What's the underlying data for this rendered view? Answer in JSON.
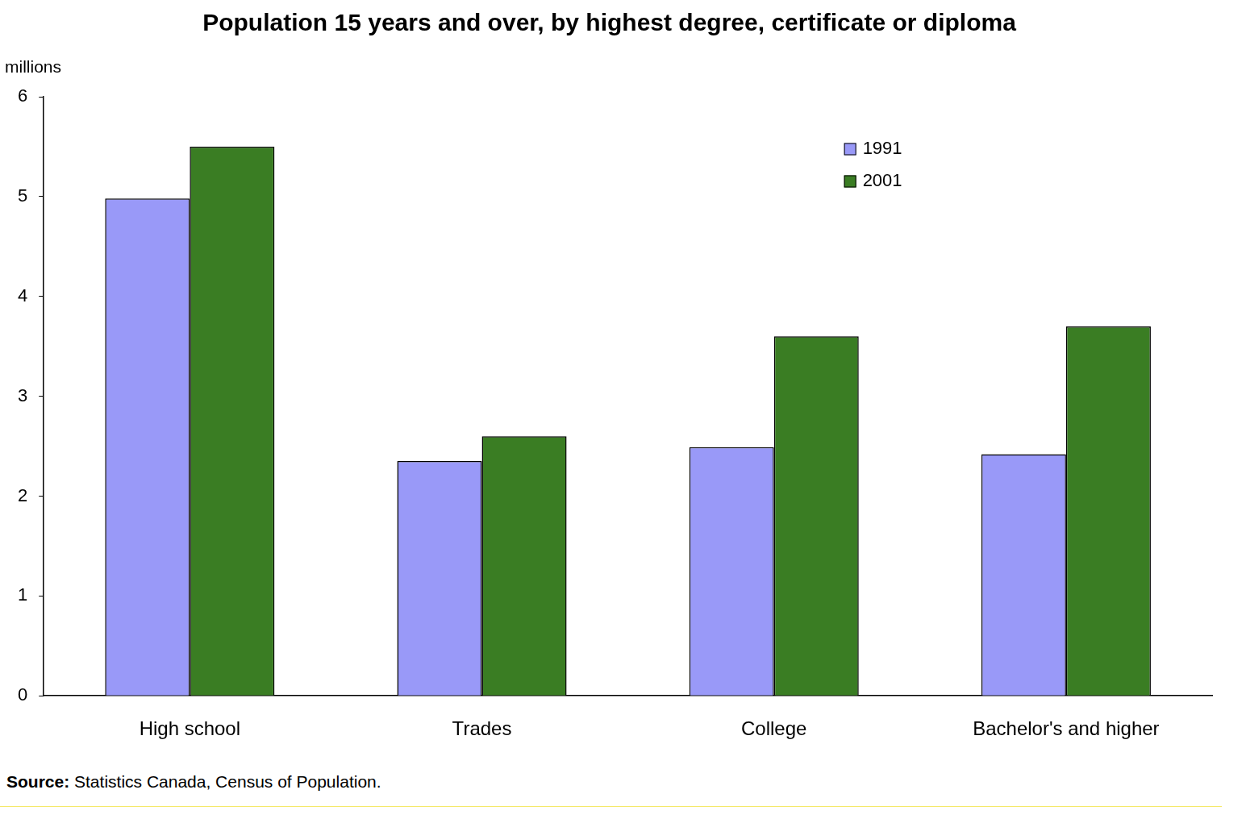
{
  "chart_data": {
    "type": "bar",
    "title": "Population 15 years and over, by highest degree, certificate or diploma",
    "ylabel": "millions",
    "categories": [
      "High school",
      "Trades",
      "College",
      "Bachelor's and higher"
    ],
    "series": [
      {
        "name": "1991",
        "color": "#9999f8",
        "values": [
          4.98,
          2.35,
          2.49,
          2.42
        ]
      },
      {
        "name": "2001",
        "color": "#3a7d23",
        "values": [
          5.5,
          2.6,
          3.6,
          3.7
        ]
      }
    ],
    "ylim": [
      0,
      6
    ],
    "yticks": [
      0,
      1,
      2,
      3,
      4,
      5,
      6
    ],
    "grid": false,
    "legend": "upper right",
    "annotations": [
      "Source: Statistics Canada, Census of Population."
    ]
  }
}
